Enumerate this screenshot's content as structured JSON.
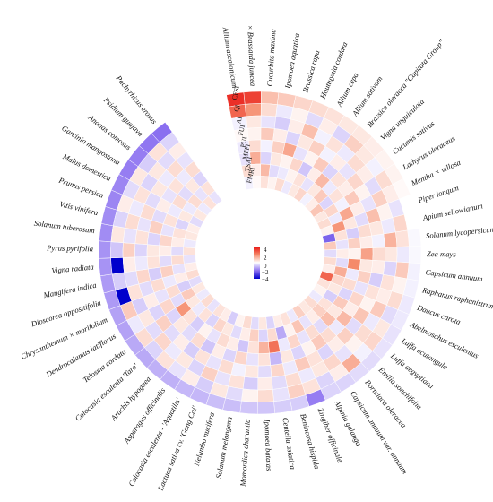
{
  "chart_data": {
    "type": "heatmap",
    "layout": "circular",
    "title": "",
    "species": [
      "Allium ascalonicum",
      "× Brassarda juncea",
      "Cucurbita maxima",
      "Ipomoea aquatica",
      "Brassica rapa",
      "Houttuynia cordata",
      "Allium cepa",
      "Allium sativum",
      "Brassica oleracea \"Capitata Group\"",
      "Vigna unguiculata",
      "Cucumis sativus",
      "Lathyrus oleraceus",
      "Mentha × villosa",
      "Piper longum",
      "Apium sellowianum",
      "Solanum lycopersicum",
      "Zea mays",
      "Capsicum annuum",
      "Raphanus raphanistrum",
      "Daucus carota",
      "Abelmoschus esculentus",
      "Luffa acutangula",
      "Luffa aegyptiaca",
      "Emilia sonchifolia",
      "Portulaca oleracea",
      "Capsicum annuum var. annuum",
      "Alpinia galanga",
      "Zingiber officinale",
      "Benincasa hispida",
      "Centella asiatica",
      "Ipomoea batatas",
      "Momordica charantia",
      "Solanum melongena",
      "Nelumbo nucifera",
      "Lactuca sativa cv. 'Gong Cai'",
      "Colocasia esculenta - 'Aquatilis'",
      "Asparagus officinalis",
      "Arachis hypogaea",
      "Colocasia esculenta 'Taro'",
      "Telosma cordata",
      "Dendrocalamus latiflorus",
      "Chrysanthemum × morifolium",
      "Dioscorea oppositifolia",
      "Mangifera indica",
      "Vigna radiata",
      "Pyrus pyrifolia",
      "Solanum tuberosum",
      "Vitis vinifera",
      "Prunus persica",
      "Malus domestica",
      "Garcinia mangostana",
      "Ananas comosus",
      "Psidium guajava",
      "Pachyrhizus erosus"
    ],
    "indices_outer_to_inner": [
      "CFSI",
      "QI",
      "AI",
      "FUI",
      "PUI",
      "MFFI",
      "TSAI",
      "FMRI"
    ],
    "values": [
      [
        3.5,
        2.6,
        -0.2,
        0.1,
        -0.3,
        -0.4,
        0.6,
        -0.2
      ],
      [
        3.2,
        1.8,
        0.4,
        0.2,
        0.6,
        1.4,
        0.3,
        0.1
      ],
      [
        1.1,
        0.6,
        -0.4,
        0.9,
        -0.2,
        -0.6,
        1.2,
        0.5
      ],
      [
        0.9,
        -0.3,
        -0.7,
        0.3,
        0.8,
        0.4,
        -0.5,
        0.2
      ],
      [
        0.7,
        0.2,
        0.3,
        -0.6,
        1.5,
        0.2,
        -0.3,
        0.6
      ],
      [
        0.6,
        -0.5,
        1.1,
        0.4,
        -0.4,
        0.7,
        0.2,
        -0.3
      ],
      [
        0.5,
        0.3,
        -0.2,
        0.8,
        0.2,
        -0.8,
        0.5,
        0.4
      ],
      [
        0.4,
        -0.6,
        0.5,
        -0.2,
        0.9,
        0.3,
        -0.4,
        0.7
      ],
      [
        0.4,
        0.8,
        -0.3,
        0.3,
        -0.6,
        1.2,
        0.4,
        -0.2
      ],
      [
        0.3,
        0.4,
        0.6,
        -0.4,
        0.5,
        -0.3,
        0.9,
        0.3
      ],
      [
        0.2,
        -0.2,
        0.3,
        0.7,
        0.3,
        0.5,
        -0.6,
        1.0
      ],
      [
        0.2,
        0.6,
        -0.5,
        0.2,
        0.9,
        -0.2,
        0.7,
        0.4
      ],
      [
        0.1,
        0.3,
        0.8,
        -0.4,
        0.3,
        1.5,
        -0.3,
        0.6
      ],
      [
        0.0,
        -0.4,
        0.2,
        1.1,
        -0.5,
        0.4,
        1.8,
        0.2
      ],
      [
        0.0,
        0.7,
        -0.3,
        0.4,
        0.6,
        -0.7,
        0.5,
        -2.2
      ],
      [
        -0.1,
        0.5,
        1.3,
        -0.2,
        0.3,
        0.8,
        -0.4,
        0.9
      ],
      [
        -0.1,
        -0.3,
        0.4,
        0.6,
        1.6,
        0.2,
        0.3,
        -0.5
      ],
      [
        -0.2,
        0.9,
        -0.6,
        0.3,
        0.4,
        2.0,
        -0.5,
        0.6
      ],
      [
        -0.2,
        0.2,
        0.5,
        -0.7,
        0.8,
        -0.3,
        1.4,
        0.3
      ],
      [
        -0.3,
        0.6,
        0.3,
        0.5,
        -0.4,
        0.6,
        0.7,
        2.6
      ],
      [
        -0.3,
        -0.5,
        0.9,
        0.2,
        0.7,
        -0.6,
        0.4,
        0.5
      ],
      [
        -0.4,
        0.4,
        -0.3,
        1.0,
        0.3,
        0.9,
        -0.7,
        0.2
      ],
      [
        -0.4,
        0.7,
        0.6,
        -0.5,
        1.2,
        0.4,
        0.5,
        -0.3
      ],
      [
        -0.5,
        -0.2,
        0.2,
        0.8,
        -0.3,
        1.1,
        0.8,
        0.6
      ],
      [
        -0.5,
        1.4,
        -0.4,
        0.3,
        0.6,
        -0.5,
        0.3,
        0.4
      ],
      [
        -0.6,
        0.3,
        0.7,
        -0.6,
        0.9,
        0.6,
        -0.4,
        0.8
      ],
      [
        -0.6,
        -0.6,
        0.4,
        0.5,
        0.2,
        -0.4,
        1.0,
        -0.3
      ],
      [
        -1.8,
        0.5,
        -0.3,
        0.9,
        -0.6,
        0.7,
        0.2,
        0.5
      ],
      [
        -0.7,
        0.8,
        0.6,
        -0.3,
        0.4,
        -0.3,
        -1.2,
        0.3
      ],
      [
        -0.7,
        -0.4,
        -0.5,
        0.7,
        -1.0,
        2.4,
        0.6,
        -0.6
      ],
      [
        -0.8,
        0.6,
        0.3,
        -0.5,
        0.5,
        1.3,
        -0.6,
        0.4
      ],
      [
        -0.8,
        0.2,
        -0.7,
        0.4,
        -0.4,
        0.5,
        0.8,
        -0.5
      ],
      [
        -0.9,
        -0.5,
        0.5,
        -0.2,
        0.7,
        -0.8,
        0.3,
        0.6
      ],
      [
        -0.9,
        0.4,
        -0.4,
        0.6,
        -0.6,
        0.3,
        -0.5,
        0.2
      ],
      [
        -1.0,
        -0.7,
        0.8,
        -0.4,
        0.3,
        0.6,
        0.4,
        -0.7
      ],
      [
        -1.0,
        0.3,
        -0.6,
        0.5,
        -0.8,
        -0.4,
        0.7,
        0.3
      ],
      [
        -1.1,
        -0.4,
        0.4,
        -0.7,
        0.6,
        0.2,
        -0.6,
        0.5
      ],
      [
        -1.1,
        0.5,
        -0.3,
        0.3,
        -0.5,
        -0.7,
        0.5,
        -0.4
      ],
      [
        -1.2,
        -0.6,
        0.7,
        -0.5,
        0.4,
        0.5,
        -0.3,
        0.6
      ],
      [
        -1.2,
        0.6,
        -0.5,
        0.8,
        -0.6,
        1.8,
        0.4,
        -0.3
      ],
      [
        -1.3,
        -0.3,
        0.4,
        -0.6,
        0.7,
        -0.5,
        0.9,
        0.4
      ],
      [
        -1.3,
        0.9,
        -0.7,
        0.3,
        -0.4,
        0.6,
        -0.7,
        -0.5
      ],
      [
        -1.4,
        -4.0,
        0.5,
        -0.5,
        0.6,
        -0.3,
        0.3,
        0.6
      ],
      [
        -1.4,
        -0.7,
        -0.5,
        0.7,
        -0.7,
        0.8,
        -0.4,
        0.3
      ],
      [
        -1.5,
        -4.0,
        0.3,
        -0.3,
        0.5,
        -0.5,
        0.6,
        -0.4
      ],
      [
        -1.5,
        -0.8,
        0.8,
        -0.6,
        0.4,
        0.3,
        -0.5,
        0.5
      ],
      [
        -1.6,
        0.4,
        -0.4,
        0.5,
        -0.6,
        0.7,
        0.3,
        -0.3
      ],
      [
        -1.6,
        -0.6,
        0.6,
        -0.4,
        0.8,
        -0.4,
        0.5,
        0.4
      ],
      [
        -1.7,
        0.3,
        -0.3,
        0.6,
        -0.5,
        0.5,
        -0.6,
        0.3
      ],
      [
        -1.7,
        -0.5,
        0.5,
        -0.5,
        0.3,
        -0.3,
        0.4,
        -0.5
      ],
      [
        -1.8,
        0.4,
        -0.6,
        0.4,
        -0.4,
        0.6,
        -0.3,
        0.4
      ],
      [
        -1.8,
        -0.7,
        0.4,
        -0.3,
        0.5,
        -0.5,
        0.6,
        -0.3
      ],
      [
        -1.9,
        0.5,
        -0.5,
        0.6,
        -0.3,
        0.4,
        -0.4,
        0.5
      ],
      [
        -2.0,
        -0.6,
        0.3,
        -0.4,
        0.6,
        -0.6,
        0.5,
        -0.4
      ]
    ],
    "color_scale": {
      "min": -4,
      "max": 4,
      "stops": [
        "#0000cc",
        "#8a6ff0",
        "#ffffff",
        "#f58a6a",
        "#e81010"
      ]
    },
    "legend": {
      "ticks": [
        "4",
        "2",
        "0",
        "−2",
        "−4"
      ],
      "placement": "center"
    },
    "grid": false
  }
}
